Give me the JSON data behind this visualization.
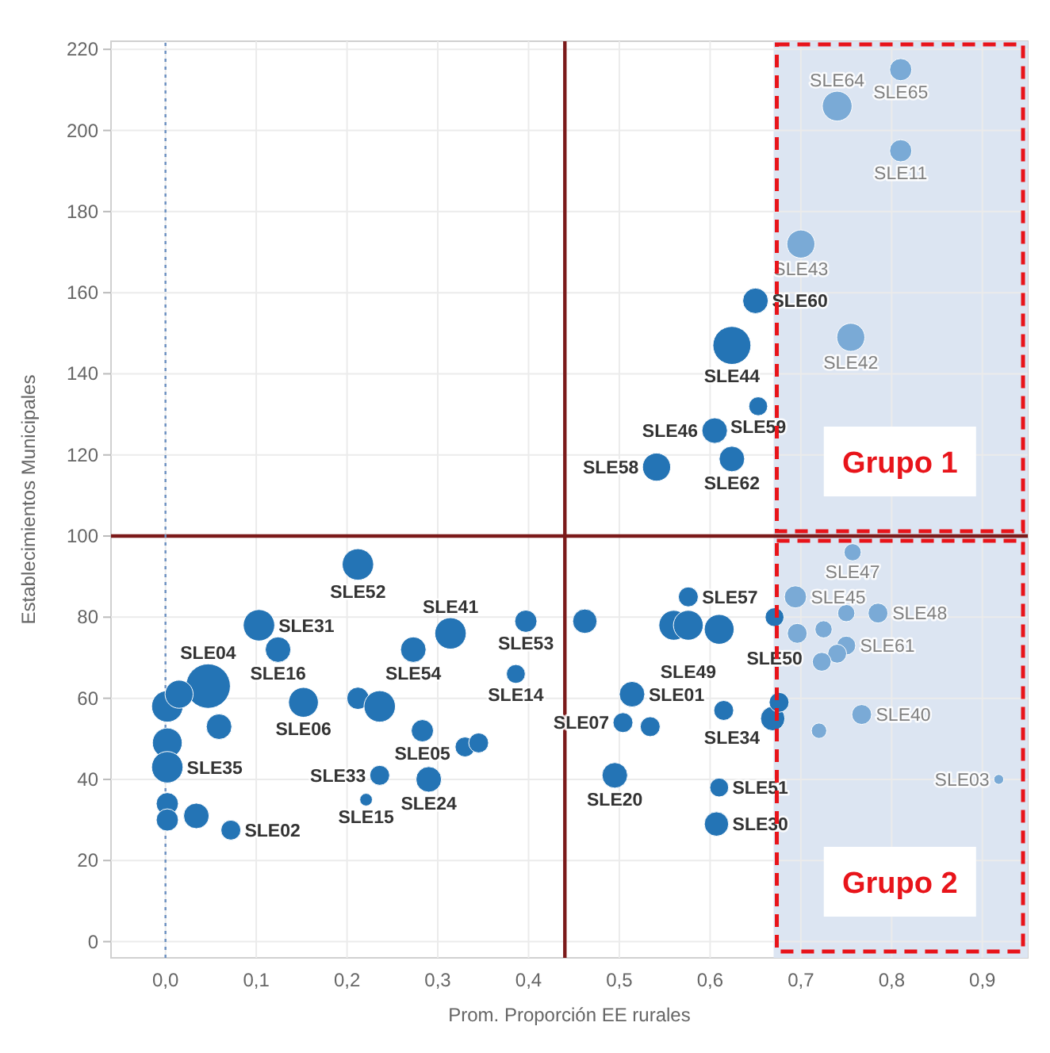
{
  "chart_data": {
    "type": "bubble",
    "xlabel": "Prom. Proporción EE rurales",
    "ylabel": "Establecimientos Municipales",
    "xlim": [
      -0.06,
      0.95
    ],
    "ylim": [
      -4,
      222
    ],
    "xticks": [
      {
        "value": 0,
        "label": "0,0"
      },
      {
        "value": 0.1,
        "label": "0,1"
      },
      {
        "value": 0.2,
        "label": "0,2"
      },
      {
        "value": 0.3,
        "label": "0,3"
      },
      {
        "value": 0.4,
        "label": "0,4"
      },
      {
        "value": 0.5,
        "label": "0,5"
      },
      {
        "value": 0.6,
        "label": "0,6"
      },
      {
        "value": 0.7,
        "label": "0,7"
      },
      {
        "value": 0.8,
        "label": "0,8"
      },
      {
        "value": 0.9,
        "label": "0,9"
      }
    ],
    "yticks": [
      0,
      20,
      40,
      60,
      80,
      100,
      120,
      140,
      160,
      180,
      200,
      220
    ],
    "grid": true,
    "series": [
      {
        "color": "#2474b5",
        "x": [
          0.65,
          0.624,
          0.653,
          0.605,
          0.624,
          0.541,
          0.212,
          0.103,
          0.124,
          0.047,
          0.002,
          0.015,
          0.059,
          0.002,
          0.002,
          0.002,
          0.002,
          0.034,
          0.072,
          0.152,
          0.212,
          0.236,
          0.273,
          0.314,
          0.283,
          0.33,
          0.345,
          0.236,
          0.221,
          0.29,
          0.386,
          0.397,
          0.462,
          0.576,
          0.56,
          0.576,
          0.61,
          0.671,
          0.514,
          0.504,
          0.534,
          0.615,
          0.495,
          0.61,
          0.607,
          0.669,
          0.676
        ],
        "values": [
          158,
          147,
          132,
          126,
          119,
          117,
          93,
          78,
          72,
          63,
          58,
          61,
          53,
          49,
          43,
          34,
          30,
          31,
          27.5,
          59,
          60,
          58,
          72,
          76,
          52,
          48,
          49,
          41,
          35,
          40,
          66,
          79,
          79,
          85,
          78,
          78,
          77,
          80,
          61,
          54,
          53,
          57,
          41,
          38,
          29,
          55,
          59
        ],
        "sizes": [
          0.33,
          0.73,
          0.18,
          0.33,
          0.33,
          0.4,
          0.5,
          0.5,
          0.33,
          1,
          0.5,
          0.4,
          0.33,
          0.45,
          0.5,
          0.25,
          0.25,
          0.33,
          0.2,
          0.45,
          0.25,
          0.5,
          0.33,
          0.5,
          0.25,
          0.2,
          0.2,
          0.2,
          0.08,
          0.33,
          0.18,
          0.25,
          0.3,
          0.2,
          0.45,
          0.45,
          0.45,
          0.18,
          0.33,
          0.2,
          0.2,
          0.2,
          0.33,
          0.18,
          0.3,
          0.3,
          0.2
        ],
        "value_labels": [
          "SLE60",
          "SLE44",
          "SLE59",
          "SLE46",
          "SLE62",
          "SLE58",
          "SLE52",
          "SLE31",
          "SLE16",
          "SLE04",
          null,
          null,
          null,
          null,
          "SLE35",
          null,
          null,
          null,
          "SLE02",
          "SLE06",
          null,
          null,
          "SLE54",
          "SLE41",
          "SLE05",
          null,
          null,
          "SLE33",
          "SLE15",
          "SLE24",
          "SLE14",
          "SLE53",
          null,
          "SLE57",
          null,
          "SLE49",
          null,
          "SLE50",
          "SLE01",
          "SLE07",
          null,
          null,
          "SLE20",
          "SLE51",
          "SLE30",
          "SLE34",
          null
        ]
      },
      {
        "color": "#7aaad6",
        "x": [
          0.81,
          0.74,
          0.81,
          0.7,
          0.755,
          0.757,
          0.694,
          0.696,
          0.725,
          0.75,
          0.785,
          0.75,
          0.74,
          0.723,
          0.72,
          0.767,
          0.918
        ],
        "values": [
          215,
          206,
          195,
          172,
          149,
          96,
          85,
          76,
          77,
          81,
          81,
          73,
          71,
          69,
          52,
          56,
          40
        ],
        "sizes": [
          0.25,
          0.45,
          0.25,
          0.4,
          0.4,
          0.15,
          0.25,
          0.2,
          0.15,
          0.15,
          0.2,
          0.18,
          0.18,
          0.18,
          0.12,
          0.2,
          0.05
        ],
        "value_labels": [
          "SLE65",
          "SLE64",
          "SLE11",
          "SLE43",
          "SLE42",
          "SLE47",
          "SLE45",
          null,
          null,
          null,
          "SLE48",
          "SLE61",
          null,
          null,
          null,
          "SLE40",
          "SLE03"
        ]
      }
    ],
    "ref_lines": [
      {
        "axis": "x",
        "value": 0.44,
        "color": "#7b1a1a"
      },
      {
        "axis": "y",
        "value": 100,
        "color": "#7b1a1a"
      },
      {
        "axis": "x",
        "value": 0,
        "color": "#6a8fc0",
        "line_style": "dotted"
      }
    ],
    "bands": [
      {
        "axis": "x",
        "from": 0.67,
        "to": 0.95,
        "color": "#dce5f2"
      }
    ],
    "annotations": [
      "Grupo 1",
      "Grupo 2"
    ]
  }
}
